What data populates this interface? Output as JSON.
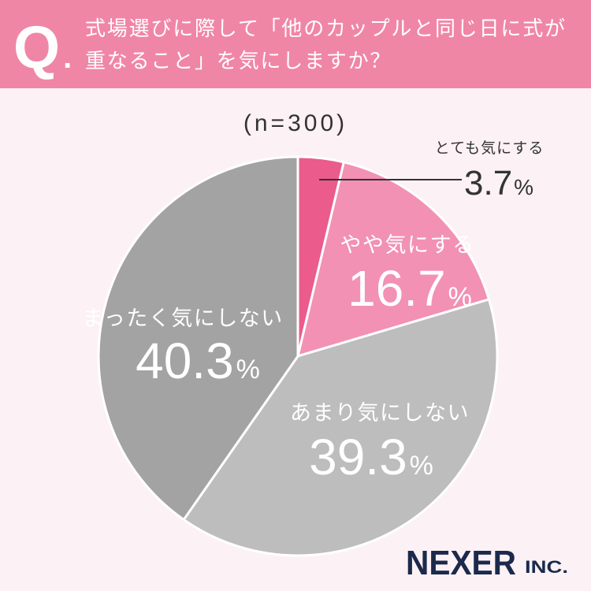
{
  "header": {
    "q_letter": "Q",
    "q_dot": ".",
    "question_lines": [
      "式場選びに際して「他のカップルと同じ日に式が",
      "重なること」を気にしますか？"
    ]
  },
  "colors": {
    "banner": "#f086a6",
    "background": "#fcf1f5",
    "text_dark": "#333333",
    "logo": "#1b2a4c",
    "slice_separator": "#ffffff"
  },
  "chart_data": {
    "type": "pie",
    "sample_size": "(n=300)",
    "unit": "%",
    "slices": [
      {
        "label": "とても気にする",
        "value": 3.7,
        "color": "#eb5b8c"
      },
      {
        "label": "やや気にする",
        "value": 16.7,
        "color": "#f291b3"
      },
      {
        "label": "あまり気にしない",
        "value": 39.3,
        "color": "#bdbdbd"
      },
      {
        "label": "まったく気にしない",
        "value": 40.3,
        "color": "#a3a3a3"
      }
    ]
  },
  "logo": {
    "name": "NEXER",
    "suffix": "INC."
  }
}
